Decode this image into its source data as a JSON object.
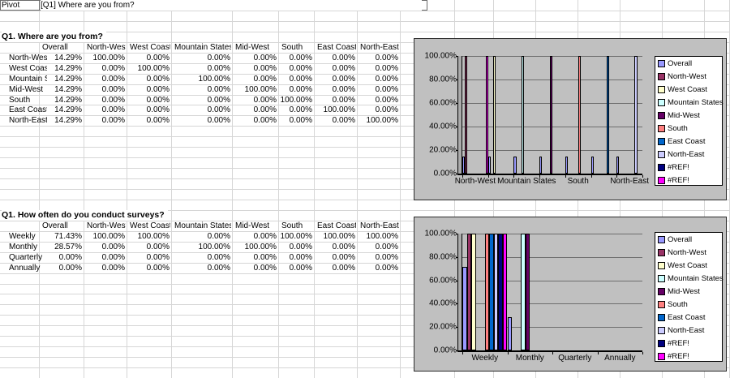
{
  "top_bar": {
    "pivot_label": "Pivot",
    "pivot_value": "[Q1] Where are you from?"
  },
  "table1": {
    "title": "Q1. Where are you from?",
    "columns": [
      "Overall",
      "North-West",
      "West Coast",
      "Mountain States",
      "Mid-West",
      "South",
      "East Coast",
      "North-East"
    ],
    "rows": [
      {
        "label": "North-West",
        "values": [
          "14.29%",
          "100.00%",
          "0.00%",
          "0.00%",
          "0.00%",
          "0.00%",
          "0.00%",
          "0.00%"
        ]
      },
      {
        "label": "West Coast",
        "values": [
          "14.29%",
          "0.00%",
          "100.00%",
          "0.00%",
          "0.00%",
          "0.00%",
          "0.00%",
          "0.00%"
        ]
      },
      {
        "label": "Mountain States",
        "values": [
          "14.29%",
          "0.00%",
          "0.00%",
          "100.00%",
          "0.00%",
          "0.00%",
          "0.00%",
          "0.00%"
        ]
      },
      {
        "label": "Mid-West",
        "values": [
          "14.29%",
          "0.00%",
          "0.00%",
          "0.00%",
          "100.00%",
          "0.00%",
          "0.00%",
          "0.00%"
        ]
      },
      {
        "label": "South",
        "values": [
          "14.29%",
          "0.00%",
          "0.00%",
          "0.00%",
          "0.00%",
          "100.00%",
          "0.00%",
          "0.00%"
        ]
      },
      {
        "label": "East Coast",
        "values": [
          "14.29%",
          "0.00%",
          "0.00%",
          "0.00%",
          "0.00%",
          "0.00%",
          "100.00%",
          "0.00%"
        ]
      },
      {
        "label": "North-East",
        "values": [
          "14.29%",
          "0.00%",
          "0.00%",
          "0.00%",
          "0.00%",
          "0.00%",
          "0.00%",
          "100.00%"
        ]
      }
    ]
  },
  "table2": {
    "title": "Q1. How often do you conduct surveys?",
    "columns": [
      "Overall",
      "North-West",
      "West Coast",
      "Mountain States",
      "Mid-West",
      "South",
      "East Coast",
      "North-East"
    ],
    "rows": [
      {
        "label": "Weekly",
        "values": [
          "71.43%",
          "100.00%",
          "100.00%",
          "0.00%",
          "0.00%",
          "100.00%",
          "100.00%",
          "100.00%"
        ]
      },
      {
        "label": "Monthly",
        "values": [
          "28.57%",
          "0.00%",
          "0.00%",
          "100.00%",
          "100.00%",
          "0.00%",
          "0.00%",
          "0.00%"
        ]
      },
      {
        "label": "Quarterly",
        "values": [
          "0.00%",
          "0.00%",
          "0.00%",
          "0.00%",
          "0.00%",
          "0.00%",
          "0.00%",
          "0.00%"
        ]
      },
      {
        "label": "Annually",
        "values": [
          "0.00%",
          "0.00%",
          "0.00%",
          "0.00%",
          "0.00%",
          "0.00%",
          "0.00%",
          "0.00%"
        ]
      }
    ]
  },
  "chart_data": [
    {
      "type": "bar",
      "title": "",
      "categories": [
        "North-West",
        "West Coast",
        "Mountain States",
        "Mid-West",
        "South",
        "East Coast",
        "North-East"
      ],
      "x_label_step": 2,
      "y_ticks": [
        "100.00%",
        "80.00%",
        "60.00%",
        "40.00%",
        "20.00%",
        "0.00%"
      ],
      "ylim": [
        0,
        100
      ],
      "grid": true,
      "legend_position": "right",
      "series": [
        {
          "name": "Overall",
          "color": "#9999FF",
          "values": [
            14.29,
            14.29,
            14.29,
            14.29,
            14.29,
            14.29,
            14.29
          ]
        },
        {
          "name": "North-West",
          "color": "#993366",
          "values": [
            100,
            0,
            0,
            0,
            0,
            0,
            0
          ]
        },
        {
          "name": "West Coast",
          "color": "#FFFFCC",
          "values": [
            0,
            100,
            0,
            0,
            0,
            0,
            0
          ]
        },
        {
          "name": "Mountain States",
          "color": "#CCFFFF",
          "values": [
            0,
            0,
            100,
            0,
            0,
            0,
            0
          ]
        },
        {
          "name": "Mid-West",
          "color": "#660066",
          "values": [
            0,
            0,
            0,
            100,
            0,
            0,
            0
          ]
        },
        {
          "name": "South",
          "color": "#FF8080",
          "values": [
            0,
            0,
            0,
            0,
            100,
            0,
            0
          ]
        },
        {
          "name": "East Coast",
          "color": "#0066CC",
          "values": [
            0,
            0,
            0,
            0,
            0,
            100,
            0
          ]
        },
        {
          "name": "North-East",
          "color": "#CCCCFF",
          "values": [
            0,
            0,
            0,
            0,
            0,
            0,
            100
          ]
        },
        {
          "name": "#REF!",
          "color": "#000080",
          "values": [
            0,
            0,
            0,
            0,
            0,
            0,
            0
          ]
        },
        {
          "name": "#REF!",
          "color": "#FF00FF",
          "values": [
            100,
            0,
            0,
            0,
            0,
            0,
            0
          ]
        }
      ]
    },
    {
      "type": "bar",
      "title": "",
      "categories": [
        "Weekly",
        "Monthly",
        "Quarterly",
        "Annually"
      ],
      "x_label_step": 1,
      "y_ticks": [
        "100.00%",
        "80.00%",
        "60.00%",
        "40.00%",
        "20.00%",
        "0.00%"
      ],
      "ylim": [
        0,
        100
      ],
      "grid": true,
      "legend_position": "right",
      "series": [
        {
          "name": "Overall",
          "color": "#9999FF",
          "values": [
            71.43,
            28.57,
            0,
            0
          ]
        },
        {
          "name": "North-West",
          "color": "#993366",
          "values": [
            100,
            0,
            0,
            0
          ]
        },
        {
          "name": "West Coast",
          "color": "#FFFFCC",
          "values": [
            100,
            0,
            0,
            0
          ]
        },
        {
          "name": "Mountain States",
          "color": "#CCFFFF",
          "values": [
            0,
            100,
            0,
            0
          ]
        },
        {
          "name": "Mid-West",
          "color": "#660066",
          "values": [
            0,
            100,
            0,
            0
          ]
        },
        {
          "name": "South",
          "color": "#FF8080",
          "values": [
            100,
            0,
            0,
            0
          ]
        },
        {
          "name": "East Coast",
          "color": "#0066CC",
          "values": [
            100,
            0,
            0,
            0
          ]
        },
        {
          "name": "North-East",
          "color": "#CCCCFF",
          "values": [
            100,
            0,
            0,
            0
          ]
        },
        {
          "name": "#REF!",
          "color": "#000080",
          "values": [
            100,
            0,
            0,
            0
          ]
        },
        {
          "name": "#REF!",
          "color": "#FF00FF",
          "values": [
            100,
            0,
            0,
            0
          ]
        }
      ]
    }
  ]
}
